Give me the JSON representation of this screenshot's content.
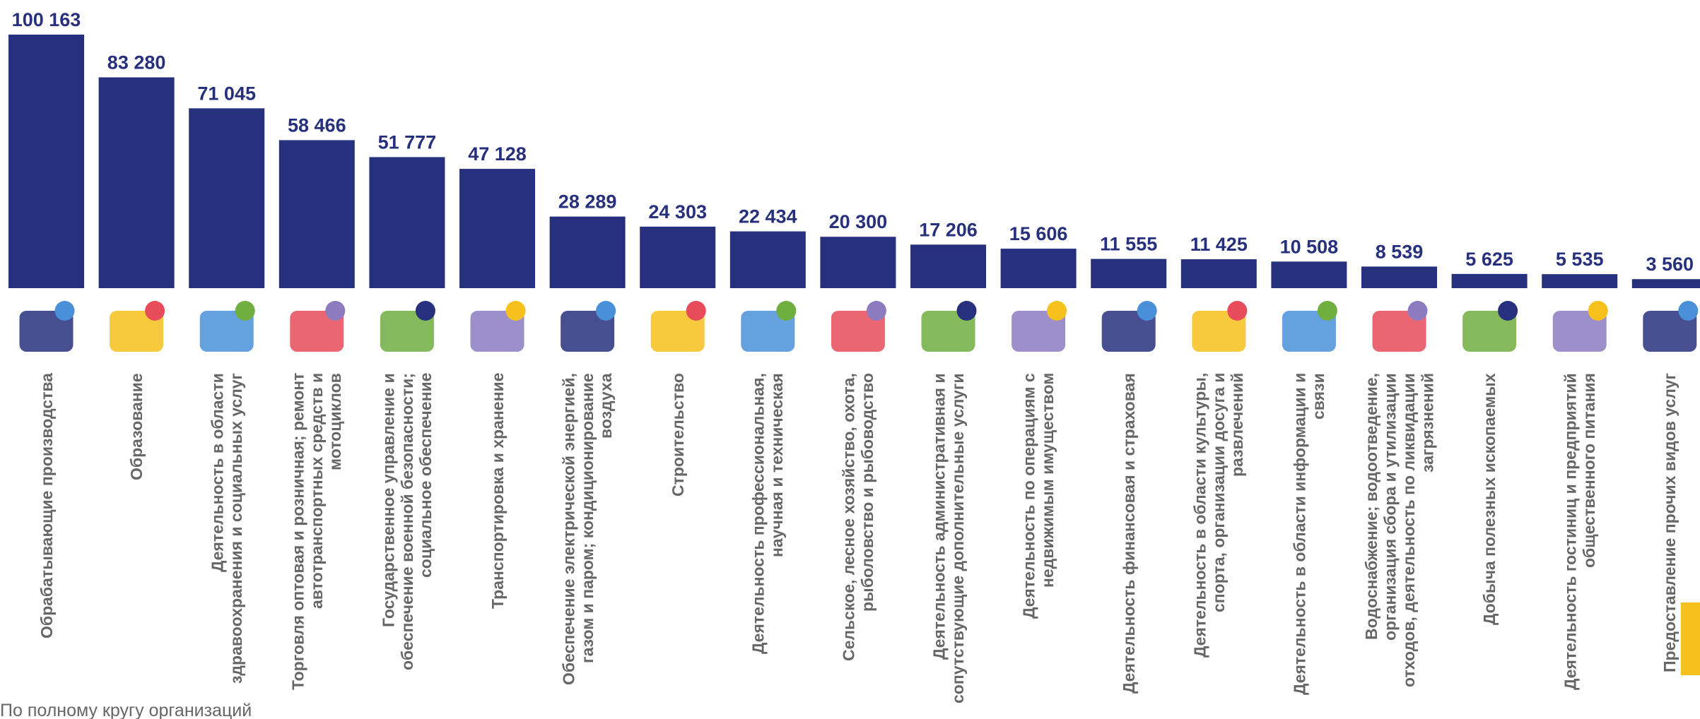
{
  "chart_data": {
    "type": "bar",
    "categories": [
      "Обрабатывающие производства",
      "Образование",
      "Деятельность в области здравоохранения и социальных услуг",
      "Торговля оптовая и розничная; ремонт автотранспортных средств и мотоциклов",
      "Государственное управление и обеспечение военной безопасности; социальное обеспечение",
      "Транспортировка и хранение",
      "Обеспечение электрической энергией, газом и паром; кондиционирование воздуха",
      "Строительство",
      "Деятельность профессиональная, научная и техническая",
      "Сельское, лесное хозяйство, охота, рыболовство и рыбоводство",
      "Деятельность административная и сопутствующие дополнительные услуги",
      "Деятельность по операциям с недвижимым имуществом",
      "Деятельность финансовая и страховая",
      "Деятельность в области культуры, спорта, организации досуга и развлечений",
      "Деятельность в области информации и связи",
      "Водоснабжение; водоотведение, организация сбора и утилизации отходов, деятельность по ликвидации загрязнений",
      "Добыча полезных ископаемых",
      "Деятельность гостиниц и предприятий общественного питания",
      "Предоставление прочих видов услуг"
    ],
    "values": [
      100163,
      83280,
      71045,
      58466,
      51777,
      47128,
      28289,
      24303,
      22434,
      20300,
      17206,
      15606,
      11555,
      11425,
      10508,
      8539,
      5625,
      5535,
      3560
    ],
    "value_labels": [
      "100 163",
      "83 280",
      "71 045",
      "58 466",
      "51 777",
      "47 128",
      "28 289",
      "24 303",
      "22 434",
      "20 300",
      "17 206",
      "15 606",
      "11 555",
      "11 425",
      "10 508",
      "8 539",
      "5 625",
      "5 535",
      "3 560"
    ],
    "color": "#27307c",
    "footnote": "По полному кругу организаций"
  }
}
